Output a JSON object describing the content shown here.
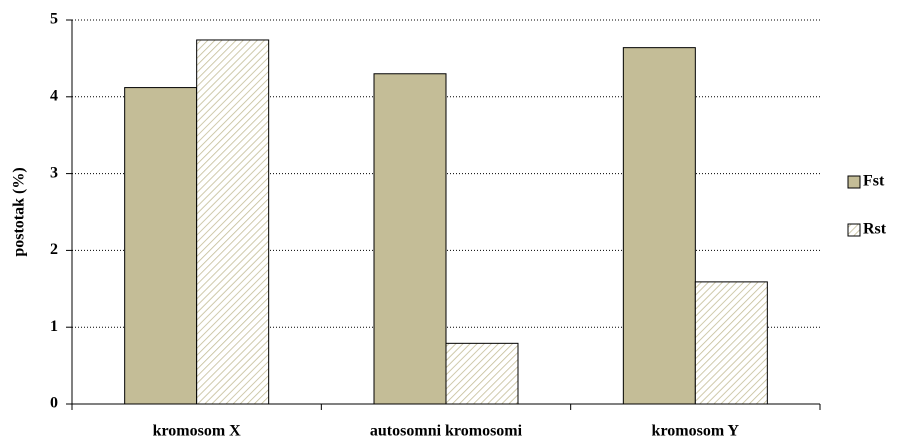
{
  "chart_data": {
    "type": "bar",
    "y_label": "postotak (%)",
    "categories": [
      "kromosom X",
      "autosomni kromosomi",
      "kromosom Y"
    ],
    "series": [
      {
        "name": "Fst",
        "color": "#c4bd97",
        "hatch": false,
        "values": [
          4.12,
          4.3,
          4.64
        ]
      },
      {
        "name": "Rst",
        "color": "#c4bd97",
        "hatch": true,
        "values": [
          4.74,
          0.79,
          1.59
        ]
      }
    ],
    "ylim": [
      0,
      5
    ],
    "yticks": [
      0,
      1,
      2,
      3,
      4,
      5
    ],
    "grid": true,
    "legend": "right"
  }
}
